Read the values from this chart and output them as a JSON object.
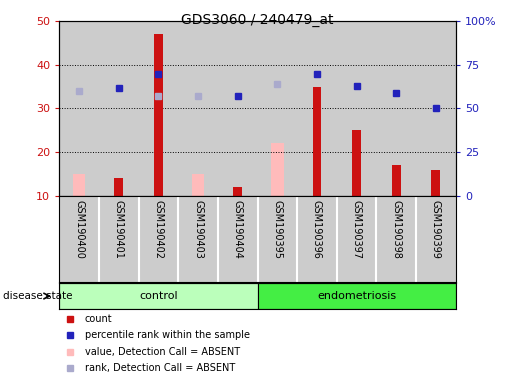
{
  "title": "GDS3060 / 240479_at",
  "samples": [
    "GSM190400",
    "GSM190401",
    "GSM190402",
    "GSM190403",
    "GSM190404",
    "GSM190395",
    "GSM190396",
    "GSM190397",
    "GSM190398",
    "GSM190399"
  ],
  "red_bars": [
    0,
    14,
    47,
    0,
    12,
    0,
    35,
    25,
    17,
    16
  ],
  "pink_bars": [
    15,
    0,
    0,
    15,
    0,
    22,
    0,
    0,
    0,
    0
  ],
  "dark_blue_dots_right": [
    null,
    62,
    70,
    null,
    57,
    null,
    70,
    63,
    59,
    50
  ],
  "light_blue_dots_right": [
    60,
    null,
    57,
    57,
    null,
    64,
    null,
    null,
    null,
    null
  ],
  "ylim_left": [
    10,
    50
  ],
  "ylim_right": [
    0,
    100
  ],
  "left_ticks": [
    10,
    20,
    30,
    40,
    50
  ],
  "right_ticks": [
    0,
    25,
    50,
    75,
    100
  ],
  "right_tick_labels": [
    "0",
    "25",
    "50",
    "75",
    "100%"
  ],
  "n_control": 5,
  "n_endo": 5,
  "bar_width": 0.5,
  "red_color": "#cc1111",
  "pink_color": "#ffbbbb",
  "dark_blue_color": "#2222bb",
  "light_blue_color": "#aaaacc",
  "control_color": "#bbffbb",
  "endo_color": "#44ee44",
  "bg_color": "#cccccc",
  "white": "#ffffff"
}
